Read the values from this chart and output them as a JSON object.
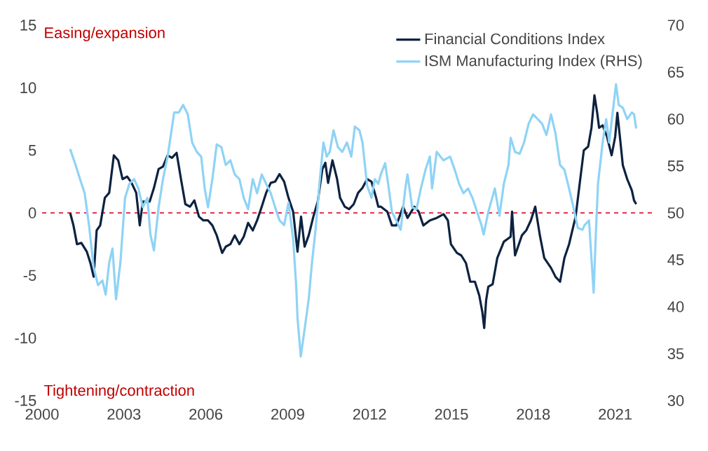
{
  "chart_data": {
    "type": "line",
    "xlim": [
      2000,
      2022.5
    ],
    "xticks": [
      2000,
      2003,
      2006,
      2009,
      2012,
      2015,
      2018,
      2021
    ],
    "ylim": [
      -15,
      15
    ],
    "yticks": [
      -15,
      -10,
      -5,
      0,
      5,
      10,
      15
    ],
    "y2lim": [
      30,
      70
    ],
    "y2ticks": [
      30,
      35,
      40,
      45,
      50,
      55,
      60,
      65,
      70
    ],
    "legend": "top right",
    "line_style": "solid",
    "annotations": [
      "Easing/expansion",
      "Tightening/contraction"
    ],
    "ref_lines": [
      {
        "axis": "y",
        "value": 0,
        "color": "#e8304f",
        "line_style": "dashed"
      }
    ],
    "series": [
      {
        "name": "Financial Conditions Index",
        "color": "#0d2240",
        "axis": "y",
        "x": [
          2001.03,
          2001.15,
          2001.28,
          2001.44,
          2001.64,
          2001.77,
          2001.89,
          2002.0,
          2002.13,
          2002.3,
          2002.46,
          2002.63,
          2002.79,
          2002.95,
          2003.12,
          2003.28,
          2003.45,
          2003.58,
          2003.69,
          2003.94,
          2004.1,
          2004.27,
          2004.43,
          2004.6,
          2004.76,
          2004.93,
          2005.09,
          2005.25,
          2005.42,
          2005.58,
          2005.75,
          2005.91,
          2006.08,
          2006.24,
          2006.4,
          2006.6,
          2006.73,
          2006.9,
          2007.06,
          2007.23,
          2007.39,
          2007.55,
          2007.72,
          2007.88,
          2008.05,
          2008.21,
          2008.38,
          2008.54,
          2008.7,
          2008.87,
          2009.03,
          2009.2,
          2009.36,
          2009.49,
          2009.62,
          2009.77,
          2009.94,
          2010.1,
          2010.27,
          2010.38,
          2010.48,
          2010.64,
          2010.81,
          2010.92,
          2011.09,
          2011.25,
          2011.42,
          2011.58,
          2011.74,
          2011.91,
          2012.07,
          2012.24,
          2012.32,
          2012.41,
          2012.65,
          2012.82,
          2012.98,
          2013.23,
          2013.39,
          2013.64,
          2013.8,
          2013.97,
          2014.21,
          2014.46,
          2014.71,
          2014.87,
          2014.98,
          2015.2,
          2015.36,
          2015.53,
          2015.69,
          2015.86,
          2016.02,
          2016.13,
          2016.2,
          2016.27,
          2016.35,
          2016.51,
          2016.68,
          2016.92,
          2017.17,
          2017.22,
          2017.33,
          2017.58,
          2017.74,
          2017.91,
          2018.07,
          2018.24,
          2018.4,
          2018.65,
          2018.81,
          2018.98,
          2019.14,
          2019.31,
          2019.55,
          2019.68,
          2019.85,
          2020.01,
          2020.13,
          2020.24,
          2020.34,
          2020.41,
          2020.54,
          2020.7,
          2020.87,
          2021.0,
          2021.08,
          2021.19,
          2021.28,
          2021.44,
          2021.61,
          2021.69,
          2021.77
        ],
        "values": [
          0.0,
          -1.0,
          -2.5,
          -2.4,
          -3.1,
          -4.0,
          -5.1,
          -1.4,
          -1.0,
          1.2,
          1.6,
          4.6,
          4.2,
          2.7,
          2.9,
          2.4,
          1.6,
          -1.0,
          0.9,
          0.9,
          2.0,
          3.5,
          3.7,
          4.6,
          4.4,
          4.8,
          2.7,
          0.7,
          0.5,
          1.0,
          -0.3,
          -0.6,
          -0.6,
          -1.0,
          -1.8,
          -3.2,
          -2.7,
          -2.5,
          -1.8,
          -2.5,
          -1.9,
          -0.8,
          -1.4,
          -0.6,
          0.5,
          1.6,
          2.4,
          2.5,
          3.1,
          2.5,
          1.2,
          0.1,
          -3.1,
          -0.3,
          -2.7,
          -1.8,
          -0.3,
          0.9,
          3.5,
          4.0,
          2.4,
          4.2,
          2.7,
          1.2,
          0.5,
          0.3,
          0.7,
          1.6,
          2.0,
          2.7,
          2.5,
          1.2,
          0.5,
          0.5,
          0.1,
          -1.0,
          -1.0,
          0.5,
          -0.4,
          0.5,
          0.1,
          -1.0,
          -0.6,
          -0.4,
          -0.1,
          -0.6,
          -2.5,
          -3.2,
          -3.4,
          -4.0,
          -5.5,
          -5.5,
          -6.6,
          -7.9,
          -9.2,
          -7.0,
          -5.9,
          -5.7,
          -3.6,
          -2.3,
          -1.9,
          0.1,
          -3.4,
          -1.8,
          -1.4,
          -0.6,
          0.5,
          -1.8,
          -3.6,
          -4.4,
          -5.1,
          -5.5,
          -3.6,
          -2.5,
          -0.3,
          2.0,
          5.0,
          5.3,
          6.8,
          9.4,
          8.0,
          6.8,
          7.0,
          6.1,
          4.6,
          6.1,
          8.0,
          5.7,
          3.8,
          2.7,
          1.8,
          1.0,
          0.7
        ]
      },
      {
        "name": "ISM Manufacturing Index (RHS)",
        "color": "#8fd3f5",
        "axis": "y2",
        "x": [
          2001.03,
          2001.23,
          2001.39,
          2001.56,
          2001.72,
          2001.89,
          2002.05,
          2002.21,
          2002.33,
          2002.46,
          2002.58,
          2002.71,
          2002.87,
          2003.04,
          2003.2,
          2003.37,
          2003.53,
          2003.69,
          2003.86,
          2003.97,
          2004.1,
          2004.27,
          2004.43,
          2004.6,
          2004.73,
          2004.84,
          2005.01,
          2005.17,
          2005.34,
          2005.5,
          2005.67,
          2005.83,
          2005.96,
          2006.08,
          2006.24,
          2006.4,
          2006.57,
          2006.73,
          2006.9,
          2007.06,
          2007.23,
          2007.39,
          2007.55,
          2007.72,
          2007.88,
          2008.05,
          2008.21,
          2008.38,
          2008.54,
          2008.7,
          2008.87,
          2009.03,
          2009.2,
          2009.31,
          2009.36,
          2009.48,
          2009.61,
          2009.77,
          2009.89,
          2010.02,
          2010.18,
          2010.31,
          2010.43,
          2010.54,
          2010.68,
          2010.84,
          2011.0,
          2011.17,
          2011.33,
          2011.46,
          2011.63,
          2011.74,
          2011.83,
          2011.91,
          2012.07,
          2012.19,
          2012.32,
          2012.41,
          2012.57,
          2012.68,
          2012.82,
          2012.98,
          2013.14,
          2013.31,
          2013.39,
          2013.56,
          2013.72,
          2013.88,
          2014.05,
          2014.21,
          2014.29,
          2014.46,
          2014.71,
          2014.95,
          2015.12,
          2015.28,
          2015.44,
          2015.61,
          2015.77,
          2015.94,
          2016.1,
          2016.18,
          2016.35,
          2016.59,
          2016.76,
          2016.92,
          2017.09,
          2017.17,
          2017.33,
          2017.5,
          2017.66,
          2017.83,
          2017.99,
          2018.16,
          2018.32,
          2018.48,
          2018.65,
          2018.81,
          2018.98,
          2019.14,
          2019.31,
          2019.47,
          2019.63,
          2019.8,
          2019.88,
          2020.04,
          2020.13,
          2020.21,
          2020.29,
          2020.37,
          2020.54,
          2020.67,
          2020.78,
          2020.9,
          2021.03,
          2021.13,
          2021.28,
          2021.44,
          2021.61,
          2021.69,
          2021.77
        ],
        "values": [
          56.8,
          55.1,
          53.6,
          52.1,
          48.7,
          44.2,
          42.3,
          42.8,
          41.3,
          44.7,
          46.2,
          40.8,
          44.7,
          51.6,
          53.1,
          53.6,
          52.6,
          50.6,
          51.6,
          47.7,
          46.0,
          50.6,
          53.6,
          56.0,
          58.5,
          60.7,
          60.7,
          61.5,
          60.5,
          57.5,
          56.5,
          56.0,
          52.6,
          50.6,
          53.6,
          57.3,
          57.0,
          55.1,
          55.6,
          54.1,
          53.6,
          51.6,
          50.4,
          53.6,
          52.1,
          54.1,
          53.1,
          52.1,
          50.6,
          49.2,
          48.7,
          51.1,
          47.2,
          42.3,
          38.8,
          34.7,
          37.4,
          40.8,
          44.7,
          48.2,
          53.6,
          57.5,
          56.0,
          56.5,
          58.8,
          57.0,
          56.5,
          57.5,
          56.0,
          59.2,
          58.8,
          57.5,
          55.1,
          52.9,
          51.6,
          53.6,
          53.1,
          54.1,
          55.3,
          53.1,
          50.1,
          49.2,
          48.2,
          52.6,
          54.1,
          50.6,
          50.4,
          52.6,
          54.6,
          56.0,
          52.6,
          56.5,
          55.6,
          56.0,
          54.6,
          53.1,
          52.1,
          52.6,
          51.6,
          50.1,
          48.7,
          47.7,
          50.1,
          52.6,
          49.7,
          53.1,
          55.1,
          58.0,
          56.5,
          56.3,
          57.5,
          59.5,
          60.5,
          60.0,
          59.5,
          58.3,
          60.5,
          58.5,
          55.1,
          54.6,
          52.6,
          50.6,
          48.4,
          48.2,
          48.7,
          49.2,
          45.2,
          41.5,
          47.7,
          53.1,
          57.5,
          60.0,
          57.5,
          60.5,
          63.7,
          61.5,
          61.2,
          60.0,
          60.7,
          60.5,
          59.0
        ]
      }
    ]
  }
}
